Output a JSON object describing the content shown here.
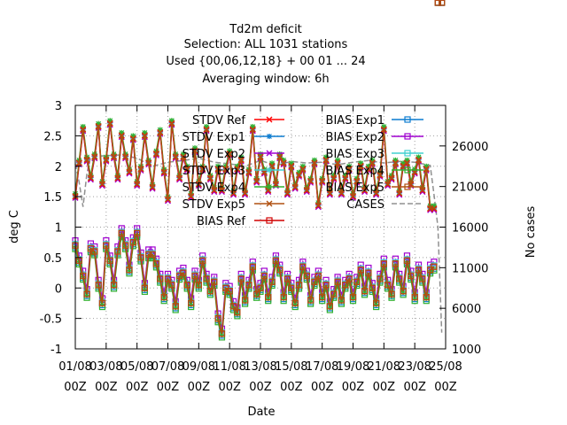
{
  "chart_data": {
    "type": "line",
    "title": [
      "Td2m deficit",
      "Selection: ALL    1031 stations",
      "Used {00,06,12,18} + 00 01 ... 24",
      "Averaging window:  6h"
    ],
    "xlabel": "Date",
    "ylabel": "deg C",
    "y2label": "No cases",
    "ylim": [
      -1,
      3
    ],
    "y2lim": [
      1000,
      31000
    ],
    "grid": true,
    "legend_position": "top-right",
    "x_ticks": [
      {
        "day": "01/08",
        "hour": "00Z"
      },
      {
        "day": "03/08",
        "hour": "00Z"
      },
      {
        "day": "05/08",
        "hour": "00Z"
      },
      {
        "day": "07/08",
        "hour": "00Z"
      },
      {
        "day": "09/08",
        "hour": "00Z"
      },
      {
        "day": "11/08",
        "hour": "00Z"
      },
      {
        "day": "13/08",
        "hour": "00Z"
      },
      {
        "day": "15/08",
        "hour": "00Z"
      },
      {
        "day": "17/08",
        "hour": "00Z"
      },
      {
        "day": "19/08",
        "hour": "00Z"
      },
      {
        "day": "21/08",
        "hour": "00Z"
      },
      {
        "day": "23/08",
        "hour": "00Z"
      },
      {
        "day": "25/08",
        "hour": "00Z"
      }
    ],
    "y_ticks": [
      "-1",
      "-0.5",
      "0",
      "0.5",
      "1",
      "1.5",
      "2",
      "2.5",
      "3"
    ],
    "y2_ticks": [
      "1000",
      "6000",
      "11000",
      "16000",
      "21000",
      "26000"
    ],
    "x_days": [
      0,
      0.25,
      0.5,
      0.75,
      1,
      1.25,
      1.5,
      1.75,
      2,
      2.25,
      2.5,
      2.75,
      3,
      3.25,
      3.5,
      3.75,
      4,
      4.25,
      4.5,
      4.75,
      5,
      5.25,
      5.5,
      5.75,
      6,
      6.25,
      6.5,
      6.75,
      7,
      7.25,
      7.5,
      7.75,
      8,
      8.25,
      8.5,
      8.75,
      9,
      9.25,
      9.5,
      9.75,
      10,
      10.25,
      10.5,
      10.75,
      11,
      11.25,
      11.5,
      11.75,
      12,
      12.25,
      12.5,
      12.75,
      13,
      13.25,
      13.5,
      13.75,
      14,
      14.25,
      14.5,
      14.75,
      15,
      15.25,
      15.5,
      15.75,
      16,
      16.25,
      16.5,
      16.75,
      17,
      17.25,
      17.5,
      17.75,
      18,
      18.25,
      18.5,
      18.75,
      19,
      19.25,
      19.5,
      19.75,
      20,
      20.25,
      20.5,
      20.75,
      21,
      21.25,
      21.5,
      21.75,
      22,
      22.25,
      22.5,
      22.75,
      23,
      23.25,
      23.5,
      23.75
    ],
    "stdv_ref": [
      1.5,
      2.05,
      2.6,
      2.1,
      1.8,
      2.15,
      2.65,
      1.7,
      2.1,
      2.7,
      2.15,
      1.8,
      2.5,
      2.15,
      1.9,
      2.45,
      1.7,
      1.95,
      2.5,
      2.05,
      1.65,
      2.2,
      2.55,
      1.9,
      1.45,
      2.7,
      2.15,
      1.8,
      2.15,
      1.95,
      1.5,
      2.25,
      1.7,
      1.95,
      2.6,
      1.8,
      1.6,
      1.95,
      1.6,
      1.95,
      2.2,
      1.55,
      1.95,
      2.1,
      1.55,
      1.9,
      2.6,
      1.75,
      2.15,
      1.9,
      1.6,
      2.0,
      1.7,
      2.15,
      2.05,
      1.55,
      2.0,
      1.65,
      1.85,
      1.95,
      1.6,
      1.75,
      2.05,
      1.35,
      1.75,
      2.1,
      1.55,
      1.8,
      2.05,
      1.55,
      1.8,
      1.95,
      1.5,
      1.75,
      2.0,
      1.6,
      1.95,
      2.05,
      1.55,
      1.85,
      2.6,
      1.7,
      1.8,
      2.05,
      1.55,
      2.0,
      2.05,
      1.7,
      1.9,
      2.1,
      1.6,
      1.95,
      1.3,
      1.3
    ],
    "bias_ref": [
      0.7,
      0.45,
      0.2,
      -0.1,
      0.65,
      0.6,
      0.05,
      -0.25,
      0.7,
      0.45,
      0.05,
      0.6,
      0.9,
      0.7,
      0.3,
      0.75,
      0.9,
      0.5,
      0.0,
      0.55,
      0.55,
      0.4,
      0.15,
      -0.15,
      0.15,
      0.05,
      -0.3,
      0.2,
      0.25,
      0.05,
      -0.25,
      0.2,
      0.05,
      0.45,
      0.15,
      -0.05,
      0.1,
      -0.5,
      -0.75,
      0.0,
      -0.05,
      -0.3,
      -0.4,
      0.15,
      -0.2,
      0.05,
      0.35,
      -0.1,
      0.0,
      0.2,
      -0.15,
      0.1,
      0.45,
      0.3,
      -0.15,
      0.15,
      0.0,
      -0.25,
      0.05,
      0.35,
      0.2,
      -0.2,
      0.1,
      0.2,
      -0.15,
      0.05,
      -0.3,
      -0.1,
      0.1,
      -0.2,
      0.05,
      0.15,
      -0.15,
      0.1,
      0.3,
      -0.05,
      0.25,
      0.0,
      -0.25,
      0.15,
      0.4,
      0.05,
      -0.1,
      0.4,
      0.15,
      -0.05,
      0.45,
      0.2,
      -0.15,
      0.3,
      0.15,
      -0.15,
      0.3,
      0.35
    ],
    "series": [
      {
        "name": "STDV Ref",
        "color": "#ff0000",
        "marker": "x",
        "kind": "stdv",
        "offset": 0.0
      },
      {
        "name": "STDV Exp1",
        "color": "#0a7bd0",
        "marker": "star",
        "kind": "stdv",
        "offset": 0.02
      },
      {
        "name": "STDV Exp2",
        "color": "#a000d0",
        "marker": "x",
        "kind": "stdv",
        "offset": -0.02
      },
      {
        "name": "STDV Exp3",
        "color": "#40d0d0",
        "marker": "star",
        "kind": "stdv",
        "offset": 0.03
      },
      {
        "name": "STDV Exp4",
        "color": "#30b030",
        "marker": "star",
        "kind": "stdv",
        "offset": 0.05
      },
      {
        "name": "STDV Exp5",
        "color": "#b05010",
        "marker": "x",
        "kind": "stdv",
        "offset": 0.01
      },
      {
        "name": "BIAS Ref",
        "color": "#d00000",
        "marker": "square",
        "kind": "bias",
        "offset": 0.0
      },
      {
        "name": "BIAS Exp1",
        "color": "#0a7bd0",
        "marker": "square",
        "kind": "bias",
        "offset": -0.03
      },
      {
        "name": "BIAS Exp2",
        "color": "#a000d0",
        "marker": "square",
        "kind": "bias",
        "offset": 0.08
      },
      {
        "name": "BIAS Exp3",
        "color": "#40d0d0",
        "marker": "square",
        "kind": "bias",
        "offset": 0.02
      },
      {
        "name": "BIAS Exp4",
        "color": "#30b030",
        "marker": "square",
        "kind": "bias",
        "offset": -0.06
      },
      {
        "name": "BIAS Exp5",
        "color": "#b05010",
        "marker": "square",
        "kind": "bias",
        "offset": 0.0
      }
    ],
    "cases": {
      "name": "CASES",
      "color": "#909090",
      "x_days": [
        0,
        0.25,
        0.5,
        0.75,
        1,
        2,
        3,
        4,
        5,
        6,
        7,
        8,
        9,
        10,
        11,
        12,
        13,
        14,
        15,
        16,
        17,
        18,
        19,
        20,
        21,
        22,
        23,
        23.25,
        23.5,
        23.75
      ],
      "values": [
        23800,
        21500,
        18500,
        22600,
        24700,
        24800,
        24900,
        24500,
        23500,
        24000,
        24200,
        24500,
        24000,
        23800,
        23500,
        24200,
        23600,
        24100,
        23900,
        24000,
        23700,
        24000,
        24200,
        23900,
        24100,
        24000,
        23600,
        20000,
        16000,
        3000
      ]
    }
  }
}
